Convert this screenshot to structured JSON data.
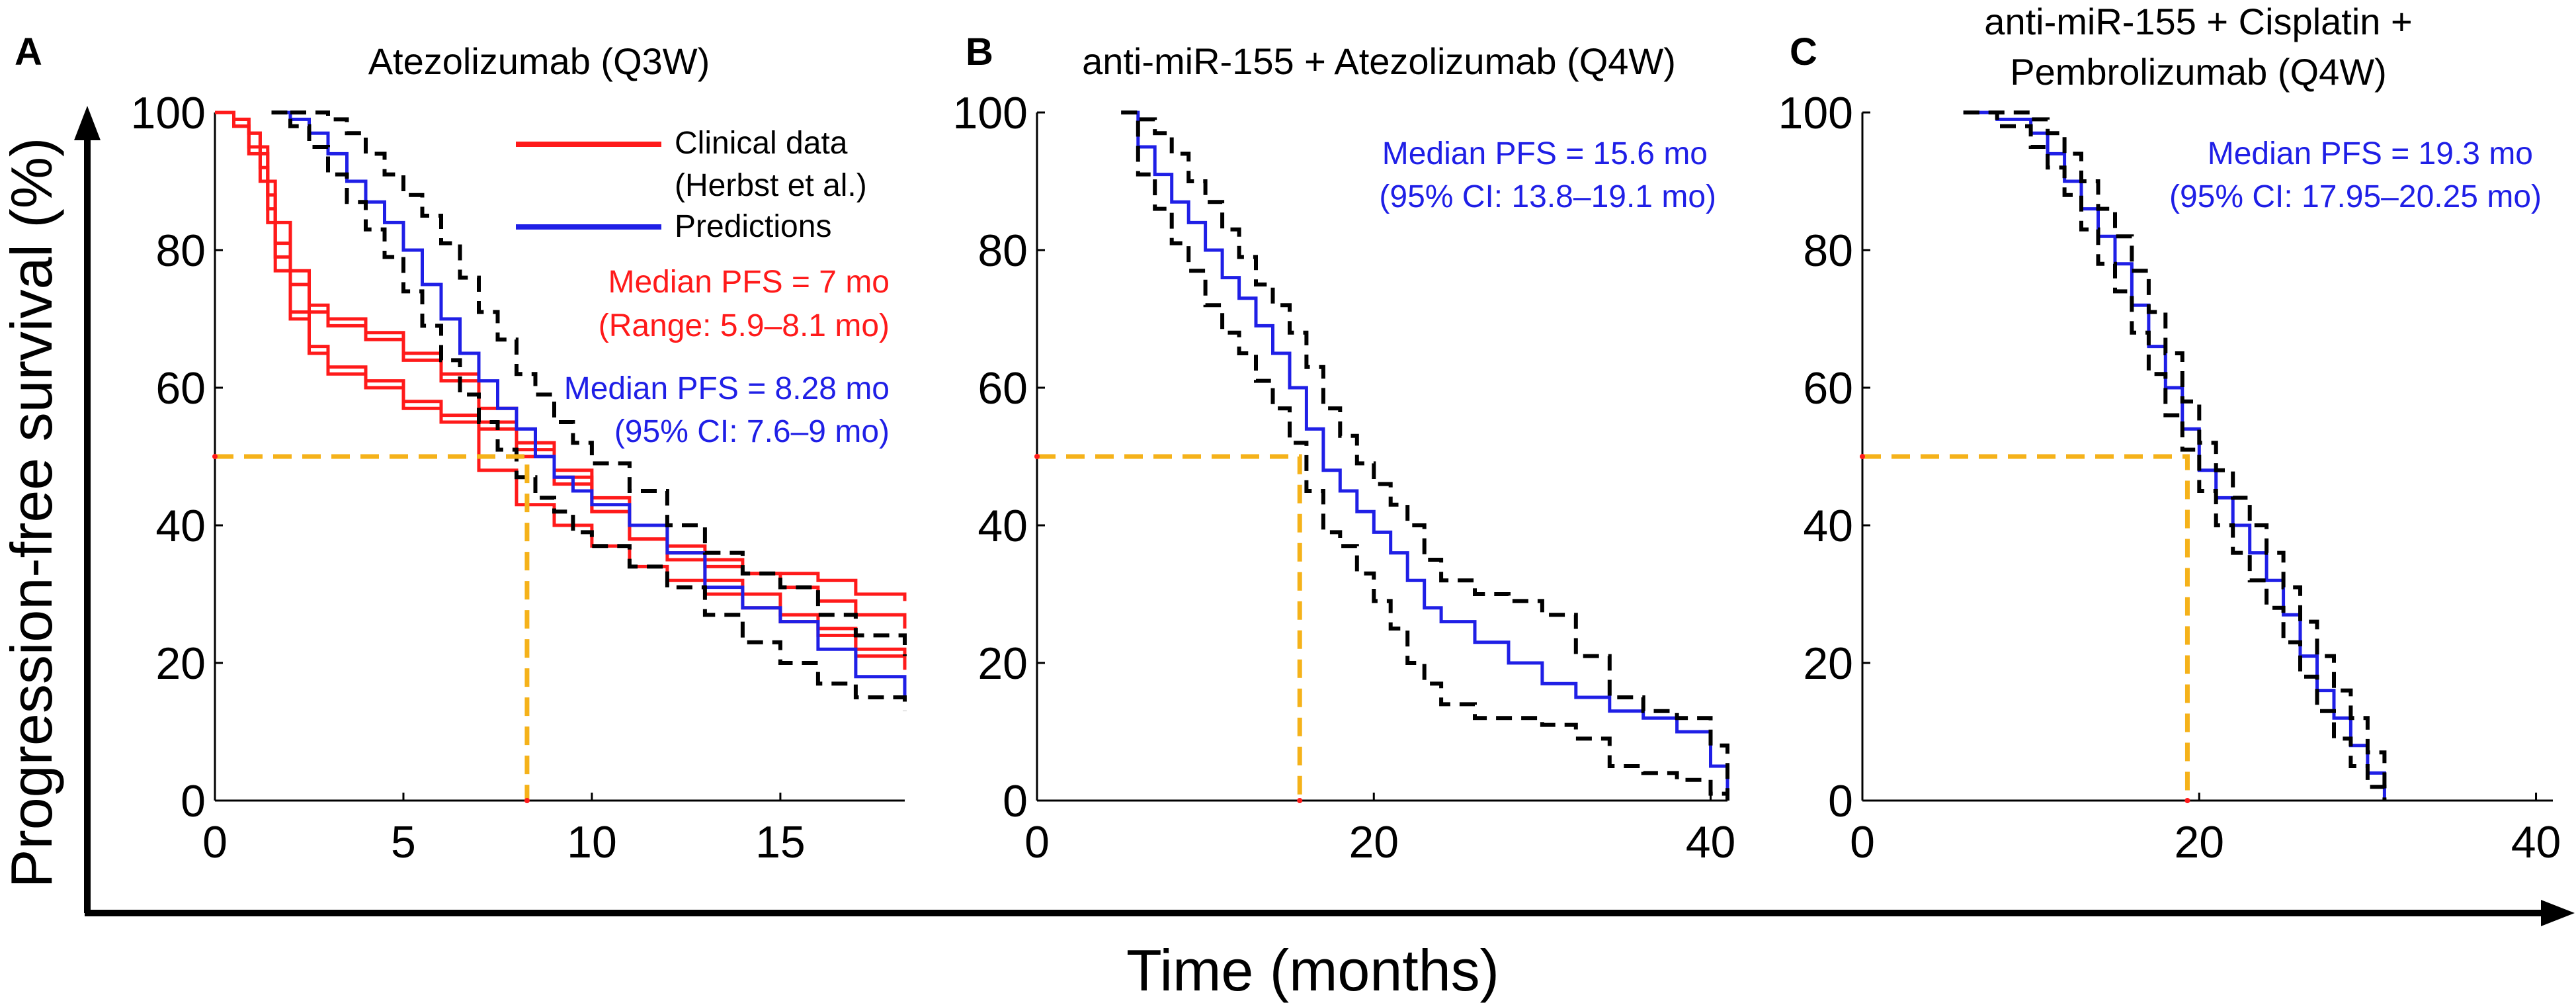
{
  "y_axis_label": "Progression-free survival (%)",
  "x_axis_label": "Time (months)",
  "colors": {
    "clinical": "#ff1a1a",
    "prediction": "#1f1fe6",
    "ci": "#000000",
    "median_guide": "#f5b21a",
    "axis": "#000000"
  },
  "legend": {
    "clinical_line1": "Clinical data",
    "clinical_line2": "(Herbst et al.)",
    "prediction": "Predictions"
  },
  "panels": [
    {
      "letter": "A",
      "title": [
        "Atezolizumab (Q3W)"
      ],
      "annotations": [
        {
          "text": "Median PFS = 7 mo",
          "color": "#ff1a1a"
        },
        {
          "text": "(Range: 5.9–8.1 mo)",
          "color": "#ff1a1a"
        },
        {
          "text": "Median PFS = 8.28 mo",
          "color": "#1f1fe6"
        },
        {
          "text": "(95% CI: 7.6–9 mo)",
          "color": "#1f1fe6"
        }
      ]
    },
    {
      "letter": "B",
      "title": [
        "anti-miR-155 + Atezolizumab (Q4W)"
      ],
      "annotations": [
        {
          "text": "Median PFS = 15.6 mo",
          "color": "#1f1fe6"
        },
        {
          "text": "(95% CI: 13.8–19.1 mo)",
          "color": "#1f1fe6"
        }
      ]
    },
    {
      "letter": "C",
      "title": [
        "anti-miR-155 + Cisplatin +",
        "Pembrolizumab (Q4W)"
      ],
      "annotations": [
        {
          "text": "Median PFS = 19.3 mo",
          "color": "#1f1fe6"
        },
        {
          "text": "(95% CI: 17.95–20.25 mo)",
          "color": "#1f1fe6"
        }
      ]
    }
  ],
  "chart_data": [
    {
      "type": "line",
      "step": true,
      "title": "Atezolizumab (Q3W)",
      "xlabel": "Time (months)",
      "ylabel": "Progression-free survival (%)",
      "xlim": [
        0,
        18.3
      ],
      "ylim": [
        0,
        100
      ],
      "xticks": [
        0,
        5,
        10,
        15
      ],
      "yticks": [
        0,
        20,
        40,
        60,
        80,
        100
      ],
      "grid": false,
      "legend_position": "top-right",
      "median_line": {
        "y": 50,
        "x": 8.28
      },
      "series": [
        {
          "name": "Clinical data",
          "role": "clinical",
          "x": [
            0,
            0.5,
            0.9,
            1.2,
            1.4,
            1.6,
            2,
            2.5,
            3,
            4,
            5,
            6,
            7,
            8,
            9,
            10,
            11,
            12,
            13,
            14,
            15,
            16,
            17,
            18.3
          ],
          "y": [
            100,
            98,
            95,
            92,
            86,
            79,
            71,
            65,
            62,
            60,
            57,
            56,
            54,
            50,
            47,
            42,
            38,
            36,
            34,
            33,
            33,
            32,
            30,
            29
          ]
        },
        {
          "name": "Clinical data",
          "role": "clinical",
          "x": [
            0,
            0.5,
            0.9,
            1.2,
            1.4,
            1.6,
            2,
            2.5,
            3,
            4,
            5,
            6,
            7,
            8,
            9,
            10,
            11,
            12,
            13,
            14,
            15,
            16,
            17,
            18.3
          ],
          "y": [
            100,
            99,
            97,
            94,
            88,
            81,
            75,
            71,
            69,
            67,
            64,
            61,
            57,
            52,
            48,
            44,
            40,
            37,
            35,
            33,
            31,
            29,
            27,
            25
          ]
        },
        {
          "name": "Clinical data",
          "role": "clinical",
          "x": [
            0,
            0.5,
            0.9,
            1.2,
            1.4,
            1.6,
            2,
            2.5,
            3,
            4,
            5,
            6,
            7,
            8,
            9,
            10,
            11,
            12,
            13,
            14,
            15,
            16,
            17,
            18.3
          ],
          "y": [
            100,
            99,
            97,
            95,
            90,
            84,
            77,
            72,
            70,
            68,
            65,
            62,
            55,
            51,
            46,
            42,
            38,
            35,
            32,
            30,
            27,
            25,
            22,
            20
          ]
        },
        {
          "name": "Clinical data",
          "role": "clinical",
          "x": [
            0,
            0.5,
            0.9,
            1.2,
            1.4,
            1.6,
            2,
            2.5,
            3,
            4,
            5,
            6,
            7,
            8,
            9,
            10,
            11,
            12,
            13,
            14,
            15,
            16,
            17,
            18.3
          ],
          "y": [
            100,
            98,
            94,
            90,
            84,
            77,
            70,
            66,
            63,
            61,
            58,
            55,
            48,
            43,
            40,
            37,
            34,
            32,
            30,
            28,
            26,
            24,
            21,
            19
          ]
        },
        {
          "name": "Predictions",
          "role": "prediction",
          "x": [
            1.7,
            2,
            2.5,
            3,
            3.5,
            4,
            4.5,
            5,
            5.5,
            6,
            6.5,
            7,
            7.5,
            8,
            8.5,
            9,
            9.5,
            10,
            11,
            12,
            13,
            14,
            15,
            16,
            17,
            18.3
          ],
          "y": [
            100,
            99,
            97,
            94,
            90,
            87,
            84,
            80,
            75,
            70,
            65,
            61,
            57,
            54,
            50,
            47,
            45,
            43,
            40,
            36,
            31,
            28,
            26,
            22,
            18,
            15
          ]
        },
        {
          "name": "CI upper",
          "role": "ci",
          "x": [
            2,
            2.5,
            3,
            3.5,
            4,
            4.5,
            5,
            5.5,
            6,
            6.5,
            7,
            7.5,
            8,
            8.5,
            9,
            9.5,
            10,
            11,
            12,
            13,
            14,
            15,
            16,
            17,
            18.3
          ],
          "y": [
            100,
            100,
            99,
            97,
            94,
            91,
            88,
            85,
            81,
            76,
            71,
            67,
            62,
            59,
            55,
            52,
            49,
            45,
            40,
            36,
            33,
            31,
            27,
            24,
            21
          ]
        },
        {
          "name": "CI lower",
          "role": "ci",
          "x": [
            1.5,
            2,
            2.5,
            3,
            3.5,
            4,
            4.5,
            5,
            5.5,
            6,
            6.5,
            7,
            7.5,
            8,
            8.5,
            9,
            9.5,
            10,
            11,
            12,
            13,
            14,
            15,
            16,
            17,
            18.3
          ],
          "y": [
            100,
            98,
            95,
            91,
            87,
            83,
            79,
            74,
            69,
            64,
            59,
            55,
            51,
            47,
            44,
            42,
            39,
            37,
            34,
            31,
            27,
            23,
            20,
            17,
            15,
            13
          ]
        }
      ]
    },
    {
      "type": "line",
      "step": true,
      "title": "anti-miR-155 + Atezolizumab (Q4W)",
      "xlabel": "Time (months)",
      "ylabel": "Progression-free survival (%)",
      "xlim": [
        0,
        41
      ],
      "ylim": [
        0,
        100
      ],
      "xticks": [
        0,
        20,
        40
      ],
      "yticks": [
        0,
        20,
        40,
        60,
        80,
        100
      ],
      "grid": false,
      "median_line": {
        "y": 50,
        "x": 15.6
      },
      "series": [
        {
          "name": "Predictions",
          "role": "prediction",
          "x": [
            5,
            6,
            7,
            8,
            9,
            10,
            11,
            12,
            13,
            14,
            15,
            16,
            17,
            18,
            19,
            20,
            21,
            22,
            23,
            24,
            26,
            28,
            30,
            32,
            34,
            36,
            38,
            40,
            41
          ],
          "y": [
            100,
            95,
            91,
            87,
            84,
            80,
            76,
            73,
            69,
            65,
            60,
            54,
            48,
            45,
            42,
            39,
            36,
            32,
            28,
            26,
            23,
            20,
            17,
            15,
            13,
            12,
            10,
            5,
            0
          ]
        },
        {
          "name": "CI upper",
          "role": "ci",
          "x": [
            5,
            6,
            7,
            8,
            9,
            10,
            11,
            12,
            13,
            14,
            15,
            16,
            17,
            18,
            19,
            20,
            21,
            22,
            23,
            24,
            26,
            28,
            30,
            32,
            34,
            36,
            38,
            40,
            41
          ],
          "y": [
            100,
            99,
            97,
            94,
            90,
            87,
            83,
            79,
            75,
            72,
            68,
            63,
            57,
            53,
            49,
            46,
            43,
            40,
            35,
            32,
            30,
            29,
            27,
            21,
            15,
            13,
            12,
            8,
            0
          ]
        },
        {
          "name": "CI lower",
          "role": "ci",
          "x": [
            5,
            6,
            7,
            8,
            9,
            10,
            11,
            12,
            13,
            14,
            15,
            16,
            17,
            18,
            19,
            20,
            21,
            22,
            23,
            24,
            26,
            28,
            30,
            32,
            34,
            36,
            38,
            40,
            41
          ],
          "y": [
            100,
            91,
            86,
            81,
            77,
            72,
            68,
            65,
            61,
            57,
            52,
            45,
            39,
            37,
            33,
            29,
            25,
            20,
            17,
            14,
            12,
            12,
            11,
            9,
            5,
            4,
            3,
            1,
            0
          ]
        }
      ]
    },
    {
      "type": "line",
      "step": true,
      "title": "anti-miR-155 + Cisplatin + Pembrolizumab (Q4W)",
      "xlabel": "Time (months)",
      "ylabel": "Progression-free survival (%)",
      "xlim": [
        0,
        41
      ],
      "ylim": [
        0,
        100
      ],
      "xticks": [
        0,
        20,
        40
      ],
      "yticks": [
        0,
        20,
        40,
        60,
        80,
        100
      ],
      "grid": false,
      "median_line": {
        "y": 50,
        "x": 19.3
      },
      "series": [
        {
          "name": "Predictions",
          "role": "prediction",
          "x": [
            6,
            8,
            10,
            11,
            12,
            13,
            14,
            15,
            16,
            17,
            18,
            19,
            20,
            21,
            22,
            23,
            24,
            25,
            26,
            27,
            28,
            29,
            30,
            31
          ],
          "y": [
            100,
            99,
            97,
            94,
            90,
            86,
            82,
            78,
            72,
            66,
            60,
            54,
            48,
            44,
            40,
            36,
            32,
            27,
            21,
            16,
            12,
            8,
            4,
            0
          ]
        },
        {
          "name": "CI upper",
          "role": "ci",
          "x": [
            6,
            8,
            10,
            11,
            12,
            13,
            14,
            15,
            16,
            17,
            18,
            19,
            20,
            21,
            22,
            23,
            24,
            25,
            26,
            27,
            28,
            29,
            30,
            31
          ],
          "y": [
            100,
            100,
            99,
            97,
            94,
            90,
            86,
            82,
            77,
            71,
            65,
            58,
            52,
            48,
            44,
            40,
            36,
            31,
            26,
            21,
            16,
            12,
            7,
            1
          ]
        },
        {
          "name": "CI lower",
          "role": "ci",
          "x": [
            6,
            8,
            10,
            11,
            12,
            13,
            14,
            15,
            16,
            17,
            18,
            19,
            20,
            21,
            22,
            23,
            24,
            25,
            26,
            27,
            28,
            29,
            30,
            31
          ],
          "y": [
            100,
            98,
            95,
            92,
            88,
            83,
            78,
            74,
            68,
            62,
            56,
            51,
            45,
            40,
            36,
            32,
            28,
            23,
            18,
            13,
            9,
            5,
            2,
            0
          ]
        }
      ]
    }
  ]
}
